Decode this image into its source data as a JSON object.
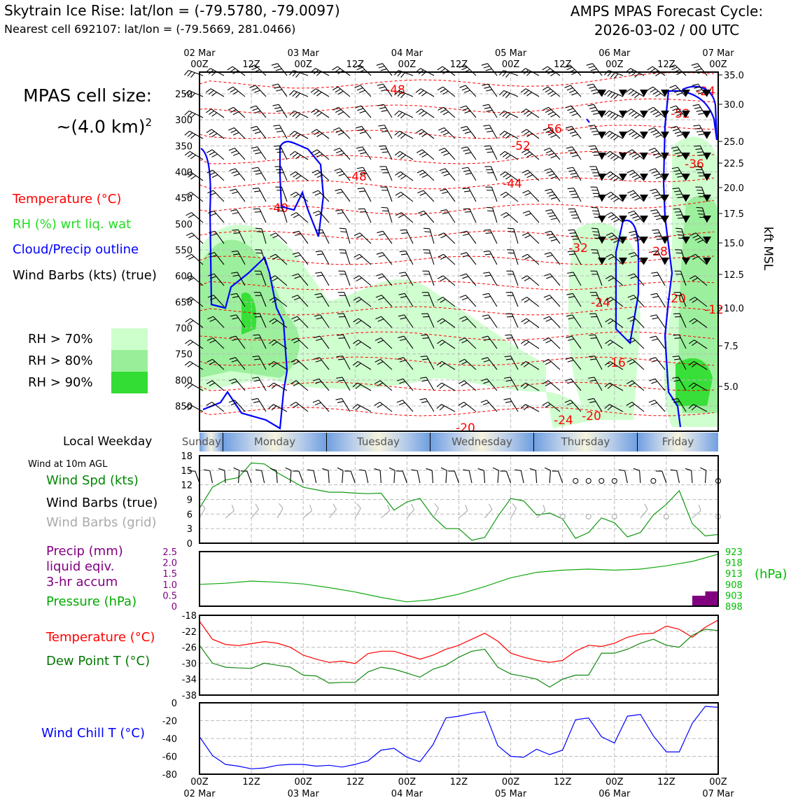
{
  "header": {
    "title_left": "Skytrain Ice Rise: lat/lon = (-79.5780, -79.0097)",
    "subtitle_left": "Nearest cell 692107: lat/lon = (-79.5669, 281.0466)",
    "title_right_1": "AMPS MPAS Forecast Cycle:",
    "title_right_2": "2026-03-02 / 00 UTC"
  },
  "left_panel": {
    "cell_size_1": "MPAS cell size:",
    "cell_size_2": "~(4.0 km)",
    "cell_size_sup": "2",
    "legend_temperature": "Temperature (°C)",
    "legend_rh": "RH (%) wrt liq. wat",
    "legend_cloud": "Cloud/Precip outline",
    "legend_wind": "Wind Barbs (kts) (true)",
    "rh_70": "RH > 70%",
    "rh_80": "RH > 80%",
    "rh_90": "RH > 90%",
    "local_weekday": "Local Weekday",
    "wind_10m": "Wind at 10m AGL",
    "wind_spd": "Wind Spd (kts)",
    "wind_barbs_true": "Wind Barbs (true)",
    "wind_barbs_grid": "Wind Barbs (grid)",
    "precip_1": "Precip (mm)",
    "precip_2": "liquid eqiv.",
    "precip_3": "3-hr accum",
    "pressure": "Pressure (hPa)",
    "temperature": "Temperature (°C)",
    "dewpoint": "Dew Point T (°C)",
    "wind_chill": "Wind Chill T (°C)"
  },
  "colors": {
    "temperature": "#ff0000",
    "rh": "#22dd22",
    "cloud": "#0000ff",
    "rh70": "#ccffcc",
    "rh80": "#99ee99",
    "rh90": "#33dd33",
    "precip": "#800080",
    "pressure": "#00aa00",
    "dewpoint": "#007700",
    "windchill": "#0000ff",
    "grid_barbs": "#aaaaaa"
  },
  "top_time_axis": {
    "top_labels": [
      "02 Mar",
      "",
      "03 Mar",
      "",
      "04 Mar",
      "",
      "05 Mar",
      "",
      "06 Mar",
      "",
      "07 Mar"
    ],
    "hour_labels": [
      "00Z",
      "12Z",
      "00Z",
      "12Z",
      "00Z",
      "12Z",
      "00Z",
      "12Z",
      "00Z",
      "12Z",
      "00Z"
    ]
  },
  "bottom_time_axis": {
    "hour_labels": [
      "00Z",
      "12Z",
      "00Z",
      "12Z",
      "00Z",
      "12Z",
      "00Z",
      "12Z",
      "00Z",
      "12Z",
      "00Z"
    ],
    "date_labels": [
      "02 Mar",
      "",
      "03 Mar",
      "",
      "04 Mar",
      "",
      "05 Mar",
      "",
      "06 Mar",
      "",
      "07 Mar"
    ]
  },
  "weekdays": [
    "Sunday",
    "Monday",
    "Tuesday",
    "Wednesday",
    "Thursday",
    "Friday"
  ],
  "chart_data": [
    {
      "type": "heatmap",
      "title": "",
      "ylabel_right": "kft MSL",
      "pressure_levels": [
        250,
        300,
        350,
        400,
        450,
        500,
        550,
        600,
        650,
        700,
        750,
        800,
        850
      ],
      "height_kft": [
        "35.0",
        "30.0",
        "25.0",
        "22.5",
        "20.0",
        "17.5",
        "15.0",
        "12.5",
        "10.0",
        "7.5",
        "5.0"
      ],
      "temperature_contour_labels": [
        "-48",
        "-52",
        "-56",
        "-52",
        "-48",
        "-44",
        "-40",
        "-36",
        "-32",
        "-28",
        "-24",
        "-20",
        "-16",
        "-12",
        "-20",
        "-24",
        "-20",
        "-24"
      ],
      "rh_thresholds": [
        70,
        80,
        90
      ]
    },
    {
      "type": "line",
      "title": "Wind at 10m AGL",
      "ylim": [
        0,
        18
      ],
      "yticks": [
        "18",
        "15",
        "12",
        "9",
        "6",
        "3",
        "0"
      ],
      "x_hours": [
        0,
        3,
        6,
        9,
        12,
        15,
        18,
        21,
        24,
        27,
        30,
        33,
        36,
        39,
        42,
        45,
        48,
        51,
        54,
        57,
        60,
        63,
        66,
        69,
        72,
        75,
        78,
        81,
        84,
        87,
        90,
        93,
        96,
        99,
        102,
        105,
        108,
        111,
        114,
        117,
        120
      ],
      "series": [
        {
          "name": "Wind Spd (kts)",
          "values": [
            7.2,
            11.5,
            13,
            13.5,
            16.5,
            16.3,
            14.5,
            13,
            11.5,
            11,
            10.5,
            10.5,
            10.3,
            10.2,
            10.3,
            6.8,
            8.5,
            9.2,
            5.5,
            3,
            3,
            0.6,
            1.2,
            5.5,
            9.2,
            8.7,
            5.8,
            6.2,
            5,
            1,
            2.2,
            5.2,
            4.2,
            1.3,
            2.2,
            5.8,
            8,
            10.8,
            4,
            1.5,
            1.8
          ]
        }
      ]
    },
    {
      "type": "line",
      "ylim_precip": [
        0,
        2.5
      ],
      "yticks_precip": [
        "2.5",
        "2.0",
        "1.5",
        "1.0",
        "0.5",
        "0"
      ],
      "ylim_pressure": [
        898,
        923
      ],
      "yticks_pressure": [
        "923",
        "918",
        "913",
        "908",
        "903",
        "898"
      ],
      "ylabel_right": "(hPa)",
      "x_hours": [
        0,
        6,
        12,
        18,
        24,
        30,
        36,
        42,
        48,
        54,
        60,
        66,
        72,
        78,
        84,
        90,
        96,
        102,
        108,
        114,
        120
      ],
      "series": [
        {
          "name": "Pressure (hPa)",
          "values": [
            908,
            908.5,
            909.5,
            909,
            908.2,
            906.5,
            904.5,
            902,
            900,
            901,
            903.5,
            907,
            911,
            913.5,
            914.5,
            915,
            914.5,
            915,
            916.5,
            918.5,
            921.8
          ]
        },
        {
          "name": "Precip (mm)",
          "bars": [
            {
              "x_start": 114,
              "x_end": 117,
              "value": 0.48
            },
            {
              "x_start": 117,
              "x_end": 120,
              "value": 0.68
            }
          ]
        }
      ]
    },
    {
      "type": "line",
      "ylim": [
        -38,
        -18
      ],
      "yticks": [
        "-18",
        "-22",
        "-26",
        "-30",
        "-34",
        "-38"
      ],
      "x_hours": [
        0,
        3,
        6,
        9,
        12,
        15,
        18,
        21,
        24,
        27,
        30,
        33,
        36,
        39,
        42,
        45,
        48,
        51,
        54,
        57,
        60,
        63,
        66,
        69,
        72,
        75,
        78,
        81,
        84,
        87,
        90,
        93,
        96,
        99,
        102,
        105,
        108,
        111,
        114,
        117,
        120
      ],
      "series": [
        {
          "name": "Temperature (°C)",
          "values": [
            -19.5,
            -24,
            -25.3,
            -25.6,
            -25.1,
            -24.6,
            -25,
            -26,
            -28,
            -29,
            -29.8,
            -29.5,
            -30.1,
            -27.6,
            -27,
            -27,
            -28,
            -29,
            -28,
            -26.5,
            -25.5,
            -24,
            -22.5,
            -24.5,
            -27.5,
            -28.5,
            -29.3,
            -29.8,
            -29.3,
            -27,
            -25.5,
            -25.8,
            -25,
            -23.5,
            -22.7,
            -22.5,
            -20.7,
            -21.5,
            -23.5,
            -21,
            -19.2
          ]
        },
        {
          "name": "Dew Point T (°C)",
          "values": [
            -25.5,
            -30,
            -31,
            -31.2,
            -31.3,
            -30,
            -30.5,
            -31,
            -33,
            -33.2,
            -35,
            -34.8,
            -34.8,
            -32.2,
            -31,
            -31.5,
            -32.5,
            -33.5,
            -31.5,
            -30.5,
            -28.5,
            -27,
            -26.5,
            -31,
            -32.7,
            -33.3,
            -34,
            -36,
            -34,
            -33,
            -33,
            -27.5,
            -27.5,
            -26.5,
            -25,
            -24,
            -25.5,
            -26,
            -23,
            -21.5,
            -21.8
          ]
        }
      ]
    },
    {
      "type": "line",
      "ylim": [
        -80,
        0
      ],
      "yticks": [
        "0",
        "-20",
        "-40",
        "-60",
        "-80"
      ],
      "x_hours": [
        0,
        3,
        6,
        9,
        12,
        15,
        18,
        21,
        24,
        27,
        30,
        33,
        36,
        39,
        42,
        45,
        48,
        51,
        54,
        57,
        60,
        63,
        66,
        69,
        72,
        75,
        78,
        81,
        84,
        87,
        90,
        93,
        96,
        99,
        102,
        105,
        108,
        111,
        114,
        117,
        120
      ],
      "series": [
        {
          "name": "Wind Chill T (°C)",
          "values": [
            -38,
            -59,
            -69,
            -71,
            -74,
            -73,
            -70,
            -69,
            -69,
            -71,
            -70,
            -72,
            -69,
            -65,
            -53,
            -51,
            -61,
            -66,
            -47,
            -17,
            -15,
            -12,
            -10,
            -48,
            -60,
            -61,
            -52,
            -58,
            -53,
            -19,
            -17,
            -38,
            -45,
            -15,
            -13,
            -37,
            -55,
            -55,
            -23,
            -4,
            -5
          ]
        }
      ]
    }
  ]
}
